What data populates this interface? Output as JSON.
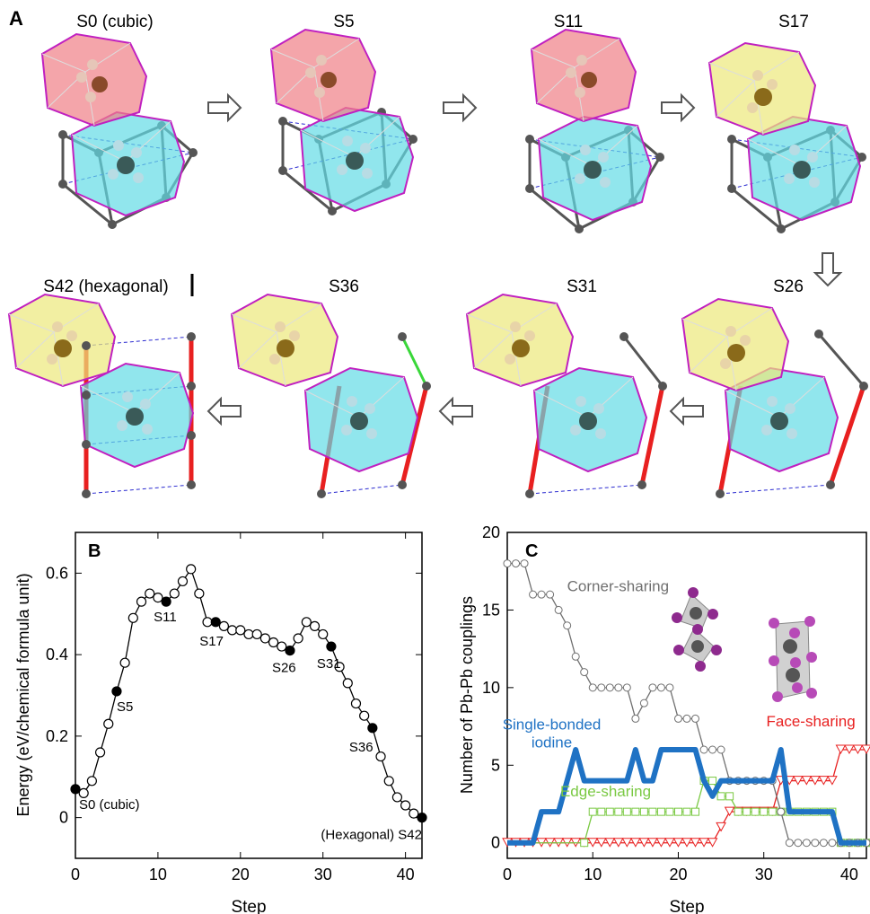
{
  "panel_a": {
    "letter": "A",
    "row1": [
      "S0 (cubic)",
      "S5",
      "S11",
      "S17"
    ],
    "row2": [
      "S42 (hexagonal)",
      "S36",
      "S31",
      "S26"
    ],
    "colors": {
      "pink": "#ef7f86",
      "cyan": "#63dbe6",
      "yellow": "#ede87a",
      "edge": "#c020c0",
      "pb": "#666666",
      "red_link": "#e82020",
      "green_link": "#39d739",
      "dash": "#1c1ccc"
    }
  },
  "panel_b": {
    "letter": "B",
    "chart_data": {
      "type": "line",
      "xlabel": "Step",
      "ylabel": "Energy (eV/chemical formula unit)",
      "xlim": [
        0,
        42
      ],
      "ylim": [
        -0.1,
        0.7
      ],
      "xticks": [
        0,
        10,
        20,
        30,
        40
      ],
      "yticks": [
        0,
        0.2,
        0.4,
        0.6
      ],
      "series": [
        {
          "x": [
            0,
            1,
            2,
            3,
            4,
            5,
            6,
            7,
            8,
            9,
            10,
            11,
            12,
            13,
            14,
            15,
            16,
            17,
            18,
            19,
            20,
            21,
            22,
            23,
            24,
            25,
            26,
            27,
            28,
            29,
            30,
            31,
            32,
            33,
            34,
            35,
            36,
            37,
            38,
            39,
            40,
            41,
            42
          ],
          "values": [
            0.07,
            0.06,
            0.09,
            0.16,
            0.23,
            0.31,
            0.38,
            0.49,
            0.53,
            0.55,
            0.54,
            0.53,
            0.55,
            0.58,
            0.61,
            0.55,
            0.48,
            0.48,
            0.47,
            0.46,
            0.46,
            0.45,
            0.45,
            0.44,
            0.43,
            0.42,
            0.41,
            0.44,
            0.48,
            0.47,
            0.45,
            0.42,
            0.37,
            0.33,
            0.28,
            0.25,
            0.22,
            0.15,
            0.09,
            0.05,
            0.03,
            0.01,
            0.0
          ]
        }
      ],
      "highlighted": [
        0,
        5,
        11,
        17,
        26,
        31,
        36,
        42
      ],
      "annotations": [
        {
          "label": "S0 (cubic)",
          "x": 0
        },
        {
          "label": "S5",
          "x": 5
        },
        {
          "label": "S11",
          "x": 11
        },
        {
          "label": "S17",
          "x": 17
        },
        {
          "label": "S26",
          "x": 26
        },
        {
          "label": "S31",
          "x": 31
        },
        {
          "label": "S36",
          "x": 36
        },
        {
          "label": "(Hexagonal) S42",
          "x": 42
        }
      ]
    }
  },
  "panel_c": {
    "letter": "C",
    "chart_data": {
      "type": "line",
      "xlabel": "Step",
      "ylabel": "Number of Pb-Pb couplings",
      "xlim": [
        0,
        42
      ],
      "ylim": [
        -1,
        20
      ],
      "xticks": [
        0,
        10,
        20,
        30,
        40
      ],
      "yticks": [
        0,
        5,
        10,
        15,
        20
      ],
      "x": [
        0,
        1,
        2,
        3,
        4,
        5,
        6,
        7,
        8,
        9,
        10,
        11,
        12,
        13,
        14,
        15,
        16,
        17,
        18,
        19,
        20,
        21,
        22,
        23,
        24,
        25,
        26,
        27,
        28,
        29,
        30,
        31,
        32,
        33,
        34,
        35,
        36,
        37,
        38,
        39,
        40,
        41,
        42
      ],
      "series": [
        {
          "name": "Corner-sharing",
          "color": "#707070",
          "values": [
            18,
            18,
            18,
            16,
            16,
            16,
            15,
            14,
            12,
            11,
            10,
            10,
            10,
            10,
            10,
            8,
            9,
            10,
            10,
            10,
            8,
            8,
            8,
            6,
            6,
            6,
            4,
            4,
            4,
            4,
            4,
            4,
            2,
            0,
            0,
            0,
            0,
            0,
            0,
            0,
            0,
            0,
            0
          ]
        },
        {
          "name": "Single-bonded iodine",
          "color": "#1f72c4",
          "values": [
            0,
            0,
            0,
            0,
            2,
            2,
            2,
            4,
            6,
            4,
            4,
            4,
            4,
            4,
            4,
            6,
            4,
            4,
            6,
            6,
            6,
            6,
            6,
            4,
            3,
            4,
            4,
            4,
            4,
            4,
            4,
            4,
            6,
            2,
            2,
            2,
            2,
            2,
            2,
            0,
            0,
            0,
            0
          ]
        },
        {
          "name": "Edge-sharing",
          "color": "#7ac943",
          "values": [
            0,
            0,
            0,
            0,
            0,
            0,
            0,
            0,
            0,
            0,
            2,
            2,
            2,
            2,
            2,
            2,
            2,
            2,
            2,
            2,
            2,
            2,
            2,
            4,
            4,
            3,
            3,
            2,
            2,
            2,
            2,
            2,
            2,
            2,
            2,
            2,
            2,
            2,
            2,
            0,
            0,
            0,
            0
          ]
        },
        {
          "name": "Face-sharing",
          "color": "#e82020",
          "values": [
            0,
            0,
            0,
            0,
            0,
            0,
            0,
            0,
            0,
            0,
            0,
            0,
            0,
            0,
            0,
            0,
            0,
            0,
            0,
            0,
            0,
            0,
            0,
            0,
            0,
            1,
            2,
            2,
            2,
            2,
            2,
            2,
            4,
            4,
            4,
            4,
            4,
            4,
            4,
            6,
            6,
            6,
            6
          ]
        }
      ],
      "series_labels": [
        {
          "text": "Corner-sharing",
          "lines": [
            "Corner-sharing"
          ]
        },
        {
          "text": "Single-bonded iodine",
          "lines": [
            "Single-bonded",
            "iodine"
          ]
        },
        {
          "text": "Edge-sharing",
          "lines": [
            "Edge-sharing"
          ]
        },
        {
          "text": "Face-sharing",
          "lines": [
            "Face-sharing"
          ]
        }
      ]
    }
  }
}
